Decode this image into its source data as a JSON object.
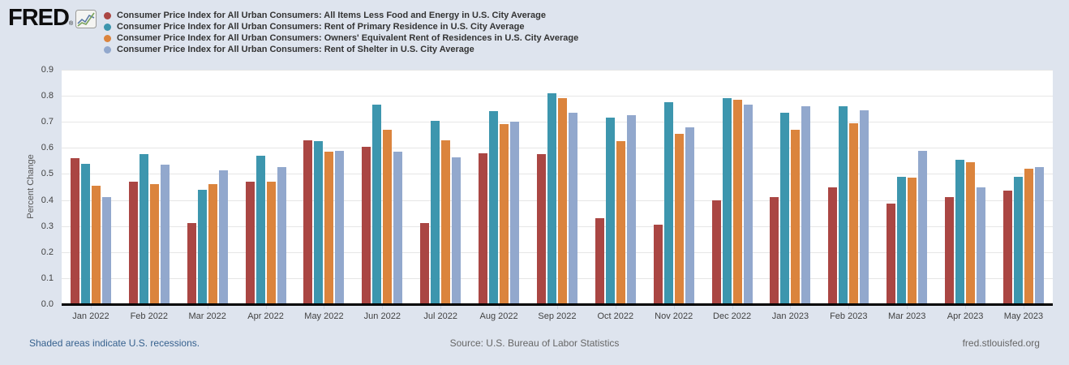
{
  "page": {
    "background": "#dee4ee"
  },
  "header": {
    "logo_text": "FRED",
    "logo_registered": "®",
    "logo_icon": "sparkline-chart-icon",
    "legend": [
      {
        "color": "#AA4643",
        "label": "Consumer Price Index for All Urban Consumers: All Items Less Food and Energy in U.S. City Average"
      },
      {
        "color": "#3D96AE",
        "label": "Consumer Price Index for All Urban Consumers: Rent of Primary Residence in U.S. City Average"
      },
      {
        "color": "#DB843D",
        "label": "Consumer Price Index for All Urban Consumers: Owners' Equivalent Rent of Residences in U.S. City Average"
      },
      {
        "color": "#92A8CD",
        "label": "Consumer Price Index for All Urban Consumers: Rent of Shelter in U.S. City Average"
      }
    ]
  },
  "chart_data": {
    "type": "bar",
    "title": "",
    "xlabel": "",
    "ylabel": "Percent Change",
    "ylim": [
      0,
      0.9
    ],
    "yticks": [
      "0.0",
      "0.1",
      "0.2",
      "0.3",
      "0.4",
      "0.5",
      "0.6",
      "0.7",
      "0.8",
      "0.9"
    ],
    "grid": true,
    "legend_position": "top-left",
    "plot_background": "#ffffff",
    "gridline_color": "#e6e6e6",
    "categories": [
      "Jan 2022",
      "Feb 2022",
      "Mar 2022",
      "Apr 2022",
      "May 2022",
      "Jun 2022",
      "Jul 2022",
      "Aug 2022",
      "Sep 2022",
      "Oct 2022",
      "Nov 2022",
      "Dec 2022",
      "Jan 2023",
      "Feb 2023",
      "Mar 2023",
      "Apr 2023",
      "May 2023"
    ],
    "series": [
      {
        "name": "Consumer Price Index for All Urban Consumers: All Items Less Food and Energy in U.S. City Average",
        "color": "#AA4643",
        "values": [
          0.56,
          0.47,
          0.31,
          0.47,
          0.63,
          0.605,
          0.31,
          0.58,
          0.575,
          0.33,
          0.305,
          0.4,
          0.41,
          0.45,
          0.385,
          0.41,
          0.435
        ]
      },
      {
        "name": "Consumer Price Index for All Urban Consumers: Rent of Primary Residence in U.S. City Average",
        "color": "#3D96AE",
        "values": [
          0.54,
          0.575,
          0.44,
          0.57,
          0.625,
          0.765,
          0.705,
          0.74,
          0.81,
          0.715,
          0.775,
          0.79,
          0.735,
          0.76,
          0.49,
          0.555,
          0.49
        ]
      },
      {
        "name": "Consumer Price Index for All Urban Consumers: Owners' Equivalent Rent of Residences in U.S. City Average",
        "color": "#DB843D",
        "values": [
          0.455,
          0.46,
          0.46,
          0.47,
          0.585,
          0.67,
          0.63,
          0.69,
          0.79,
          0.625,
          0.655,
          0.785,
          0.67,
          0.695,
          0.485,
          0.545,
          0.52
        ]
      },
      {
        "name": "Consumer Price Index for All Urban Consumers: Rent of Shelter in U.S. City Average",
        "color": "#92A8CD",
        "values": [
          0.41,
          0.535,
          0.515,
          0.525,
          0.59,
          0.585,
          0.565,
          0.7,
          0.735,
          0.725,
          0.68,
          0.765,
          0.76,
          0.745,
          0.59,
          0.45,
          0.525
        ]
      }
    ]
  },
  "footer": {
    "recessions_note": "Shaded areas indicate U.S. recessions.",
    "source": "Source: U.S. Bureau of Labor Statistics",
    "site": "fred.stlouisfed.org"
  }
}
